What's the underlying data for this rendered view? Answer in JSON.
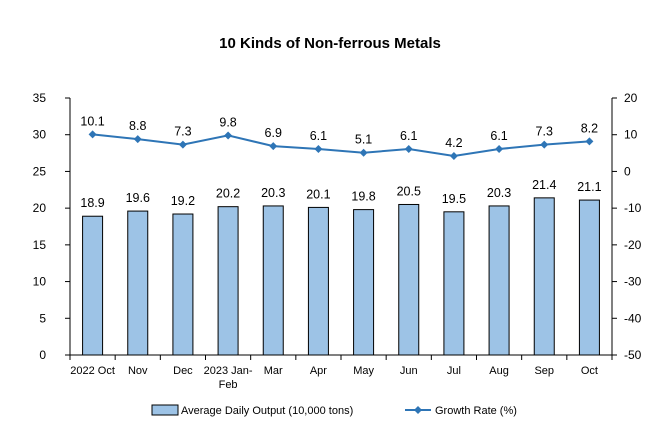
{
  "chart_data": {
    "type": "bar",
    "title": "10 Kinds of Non-ferrous Metals",
    "categories": [
      [
        "2022 Oct"
      ],
      [
        "Nov"
      ],
      [
        "Dec"
      ],
      [
        "2023 Jan-",
        "Feb"
      ],
      [
        "Mar"
      ],
      [
        "Apr"
      ],
      [
        "May"
      ],
      [
        "Jun"
      ],
      [
        "Jul"
      ],
      [
        "Aug"
      ],
      [
        "Sep"
      ],
      [
        "Oct"
      ]
    ],
    "series": [
      {
        "name": "Average Daily Output (10,000 tons)",
        "type": "bar",
        "axis": "left",
        "values": [
          18.9,
          19.6,
          19.2,
          20.2,
          20.3,
          20.1,
          19.8,
          20.5,
          19.5,
          20.3,
          21.4,
          21.1
        ],
        "labels": [
          "18.9",
          "19.6",
          "19.2",
          "20.2",
          "20.3",
          "20.1",
          "19.8",
          "20.5",
          "19.5",
          "20.3",
          "21.4",
          "21.1"
        ],
        "color": "#9DC3E6",
        "border_color": "#000000"
      },
      {
        "name": "Growth Rate (%)",
        "type": "line",
        "axis": "right",
        "values": [
          10.1,
          8.8,
          7.3,
          9.8,
          6.9,
          6.1,
          5.1,
          6.1,
          4.2,
          6.1,
          7.3,
          8.2
        ],
        "labels": [
          "10.1",
          "8.8",
          "7.3",
          "9.8",
          "6.9",
          "6.1",
          "5.1",
          "6.1",
          "4.2",
          "6.1",
          "7.3",
          "8.2"
        ],
        "color": "#2E75B6"
      }
    ],
    "y_left": {
      "min": 0,
      "max": 35,
      "ticks": [
        "0",
        "5",
        "10",
        "15",
        "20",
        "25",
        "30",
        "35"
      ]
    },
    "y_right": {
      "min": -50,
      "max": 20,
      "ticks": [
        "-50",
        "-40",
        "-30",
        "-20",
        "-10",
        "0",
        "10",
        "20"
      ]
    },
    "grid": false,
    "legend_position": "bottom"
  }
}
